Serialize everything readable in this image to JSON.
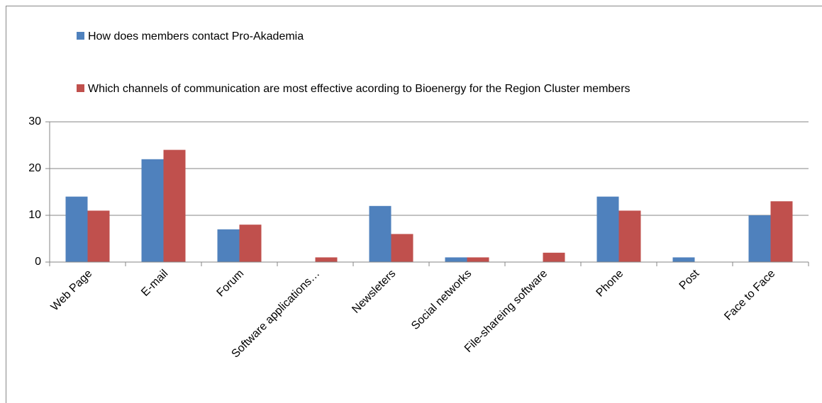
{
  "chart_data": {
    "type": "bar",
    "categories": [
      "Web Page",
      "E-mail",
      "Forum",
      "Software applications…",
      "Newsleters",
      "Social networks",
      "File-shareing software",
      "Phone",
      "Post",
      "Face to Face"
    ],
    "series": [
      {
        "name": "How does members contact Pro-Akademia",
        "color": "#4f81bd",
        "values": [
          14,
          22,
          7,
          0,
          12,
          1,
          0,
          14,
          1,
          10
        ]
      },
      {
        "name": "Which channels of communication are most effective acording to Bioenergy for the Region Cluster members",
        "color": "#c0504d",
        "values": [
          11,
          24,
          8,
          1,
          6,
          1,
          2,
          11,
          0,
          13
        ]
      }
    ],
    "ylim": [
      0,
      30
    ],
    "yticks": [
      0,
      10,
      20,
      30
    ],
    "grid": true,
    "legend": "top"
  }
}
